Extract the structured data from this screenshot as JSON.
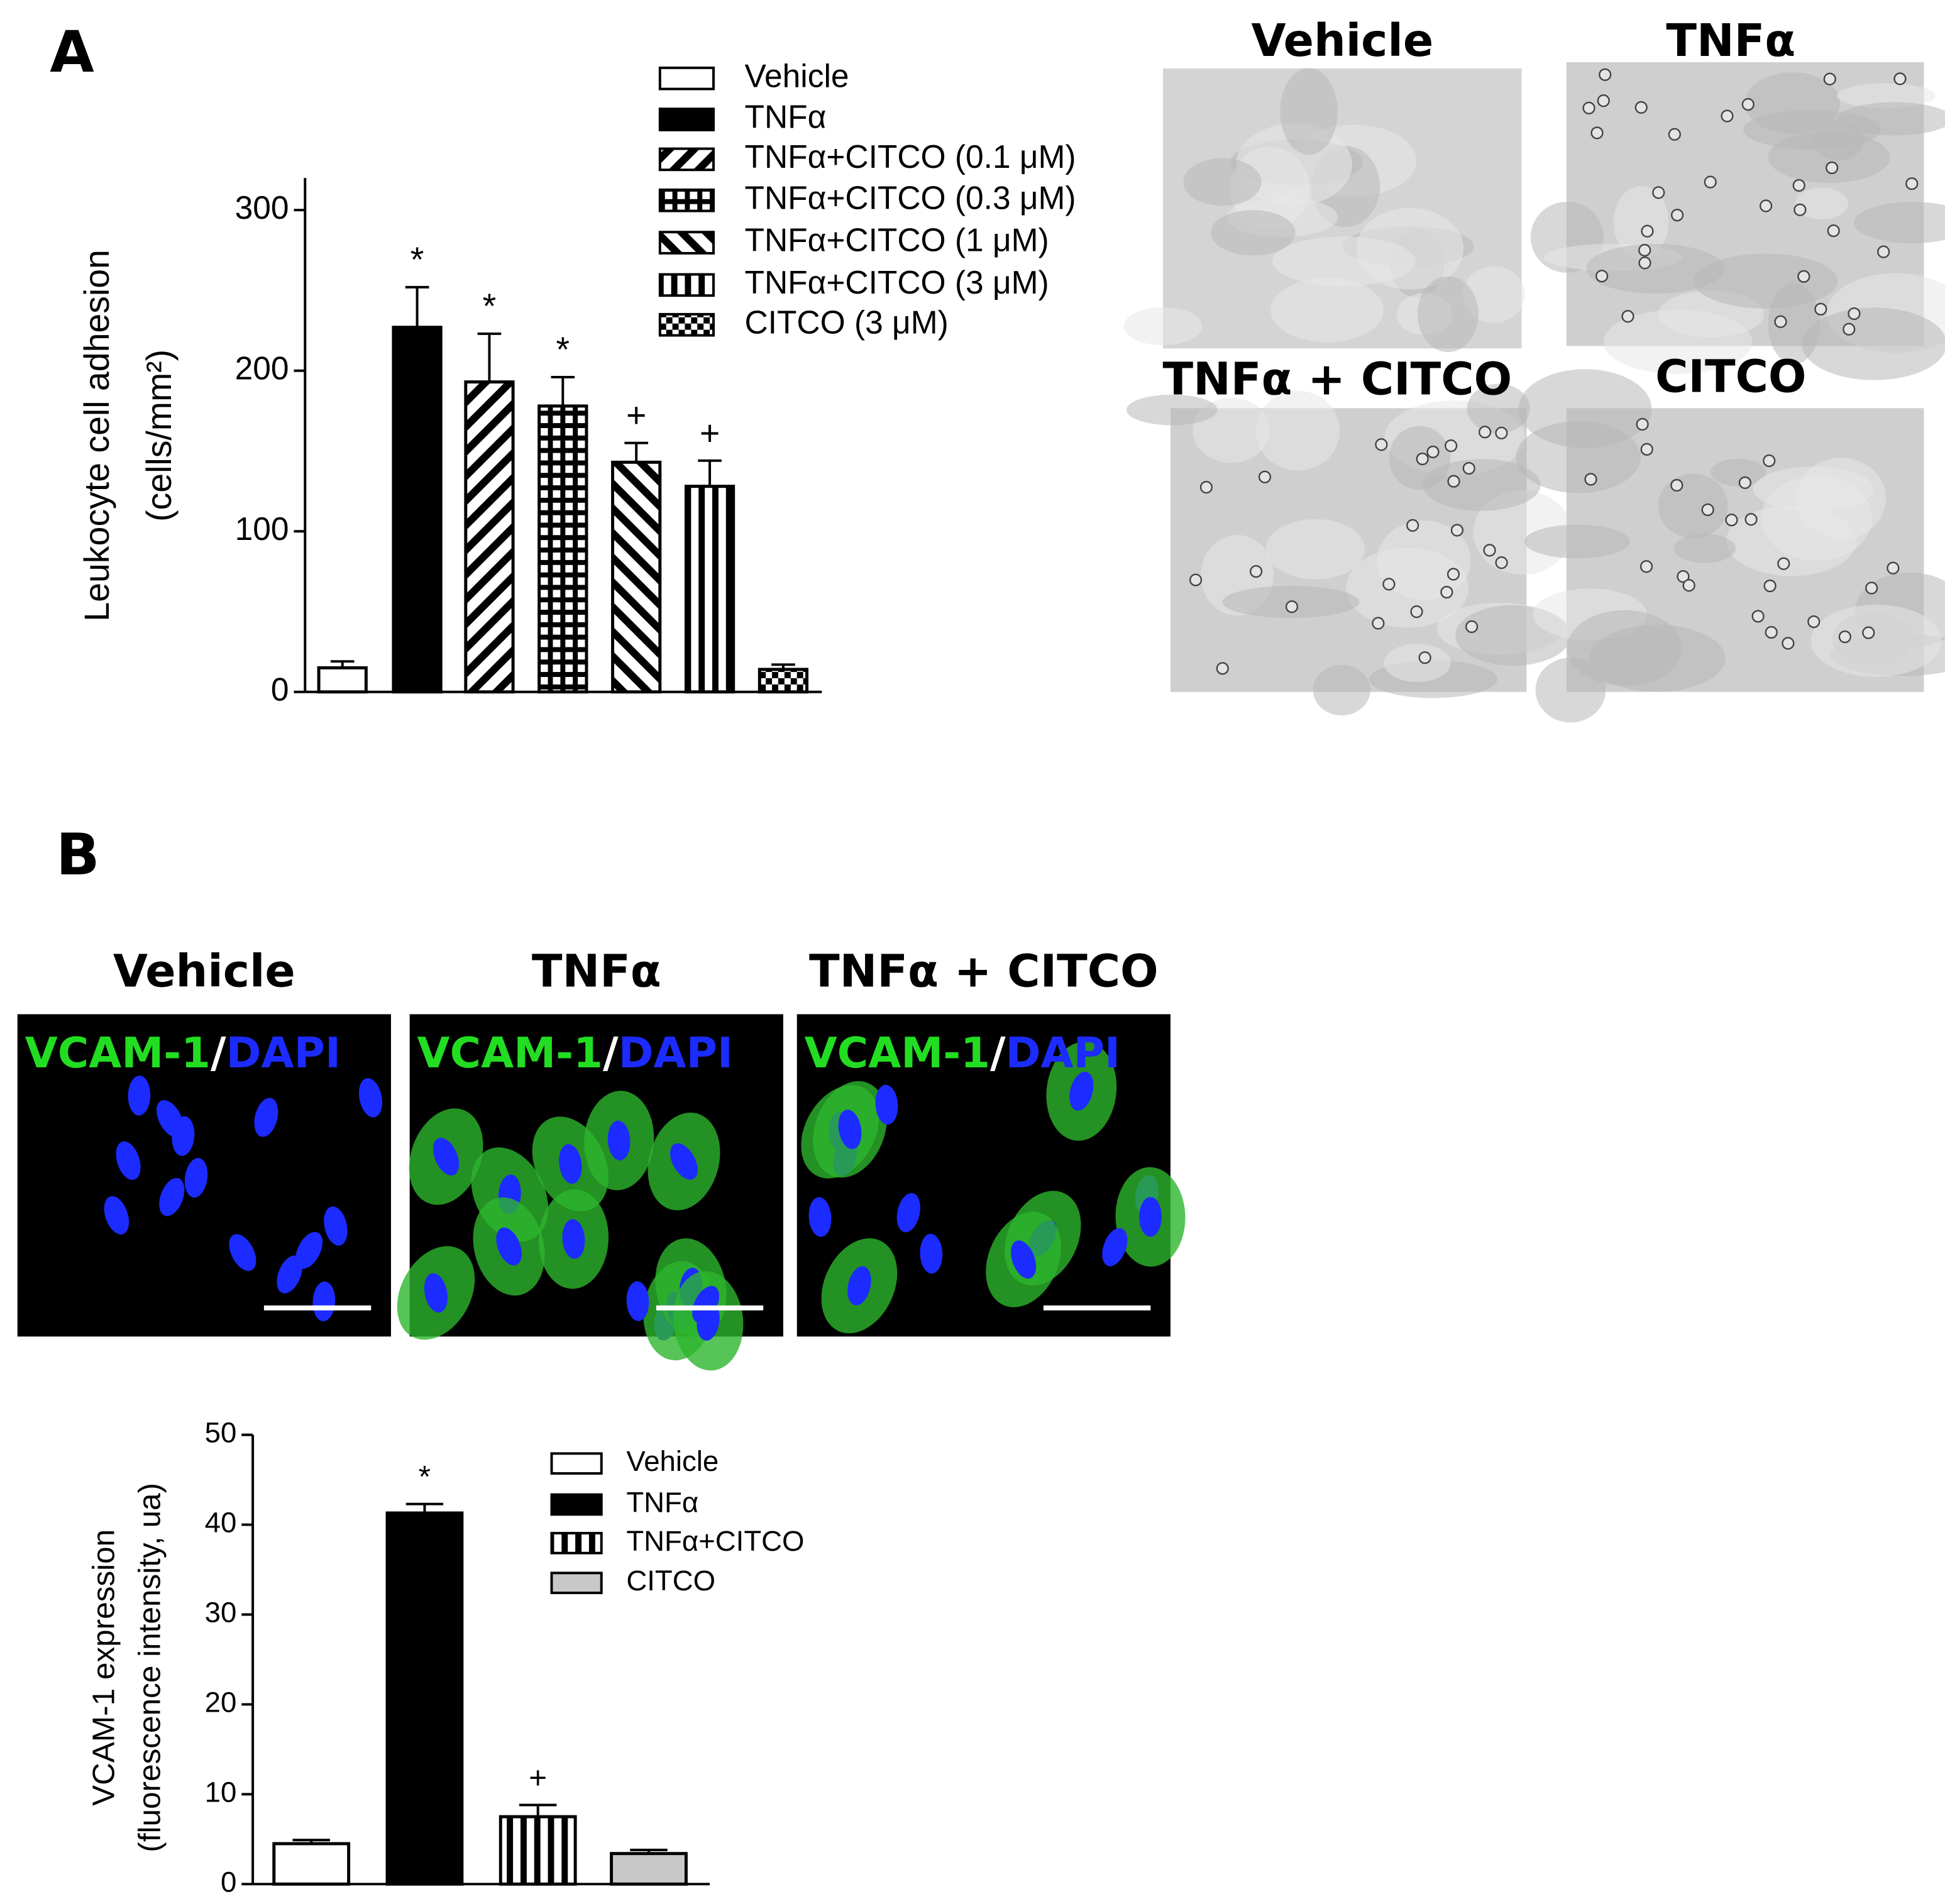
{
  "figure": {
    "panel_labels": [
      "A",
      "B"
    ],
    "micrographs_a": [
      "Vehicle",
      "TNFα",
      "TNFα + CITCO",
      "CITCO"
    ],
    "micrographs_b": [
      "Vehicle",
      "TNFα",
      "TNFα + CITCO"
    ],
    "stain": [
      "VCAM-1",
      "/",
      "DAPI"
    ]
  },
  "chart_data": [
    {
      "type": "bar",
      "ylabel": [
        "Leukocyte cell adhesion",
        "(cells/mm²)"
      ],
      "categories": [
        "Vehicle",
        "TNFα",
        "TNFα+CITCO (0.1 μM)",
        "TNFα+CITCO (0.3 μM)",
        "TNFα+CITCO (1 μM)",
        "TNFα+CITCO (3 μM)",
        "CITCO (3 μM)"
      ],
      "values": [
        15,
        227,
        193,
        178,
        143,
        128,
        14
      ],
      "errors": [
        4,
        25,
        30,
        18,
        12,
        16,
        3
      ],
      "annotations": [
        null,
        "*",
        "*",
        "*",
        "+",
        "+",
        null
      ],
      "colors": [
        "#ffffff",
        "#000000",
        "#000000",
        "#000000",
        "#000000",
        "#000000",
        "#000000"
      ],
      "patterns": [
        "none",
        "solid",
        "diag-up",
        "grid",
        "diag-down",
        "vertical",
        "checker"
      ],
      "ylim": [
        0,
        320
      ],
      "yticks": [
        0,
        100,
        200,
        300
      ]
    },
    {
      "type": "bar",
      "ylabel": [
        "VCAM-1 expression",
        "(fluorescence intensity, ua)"
      ],
      "categories": [
        "Vehicle",
        "TNFα",
        "TNFα+CITCO",
        "CITCO"
      ],
      "values": [
        4.5,
        41.3,
        7.5,
        3.4
      ],
      "errors": [
        0.4,
        1.0,
        1.3,
        0.4
      ],
      "annotations": [
        null,
        "*",
        "+",
        null
      ],
      "colors": [
        "#ffffff",
        "#000000",
        "#000000",
        "#c8c8c8"
      ],
      "patterns": [
        "none",
        "solid",
        "vertical",
        "solid"
      ],
      "ylim": [
        0,
        50
      ],
      "yticks": [
        0,
        10,
        20,
        30,
        40,
        50
      ]
    }
  ]
}
